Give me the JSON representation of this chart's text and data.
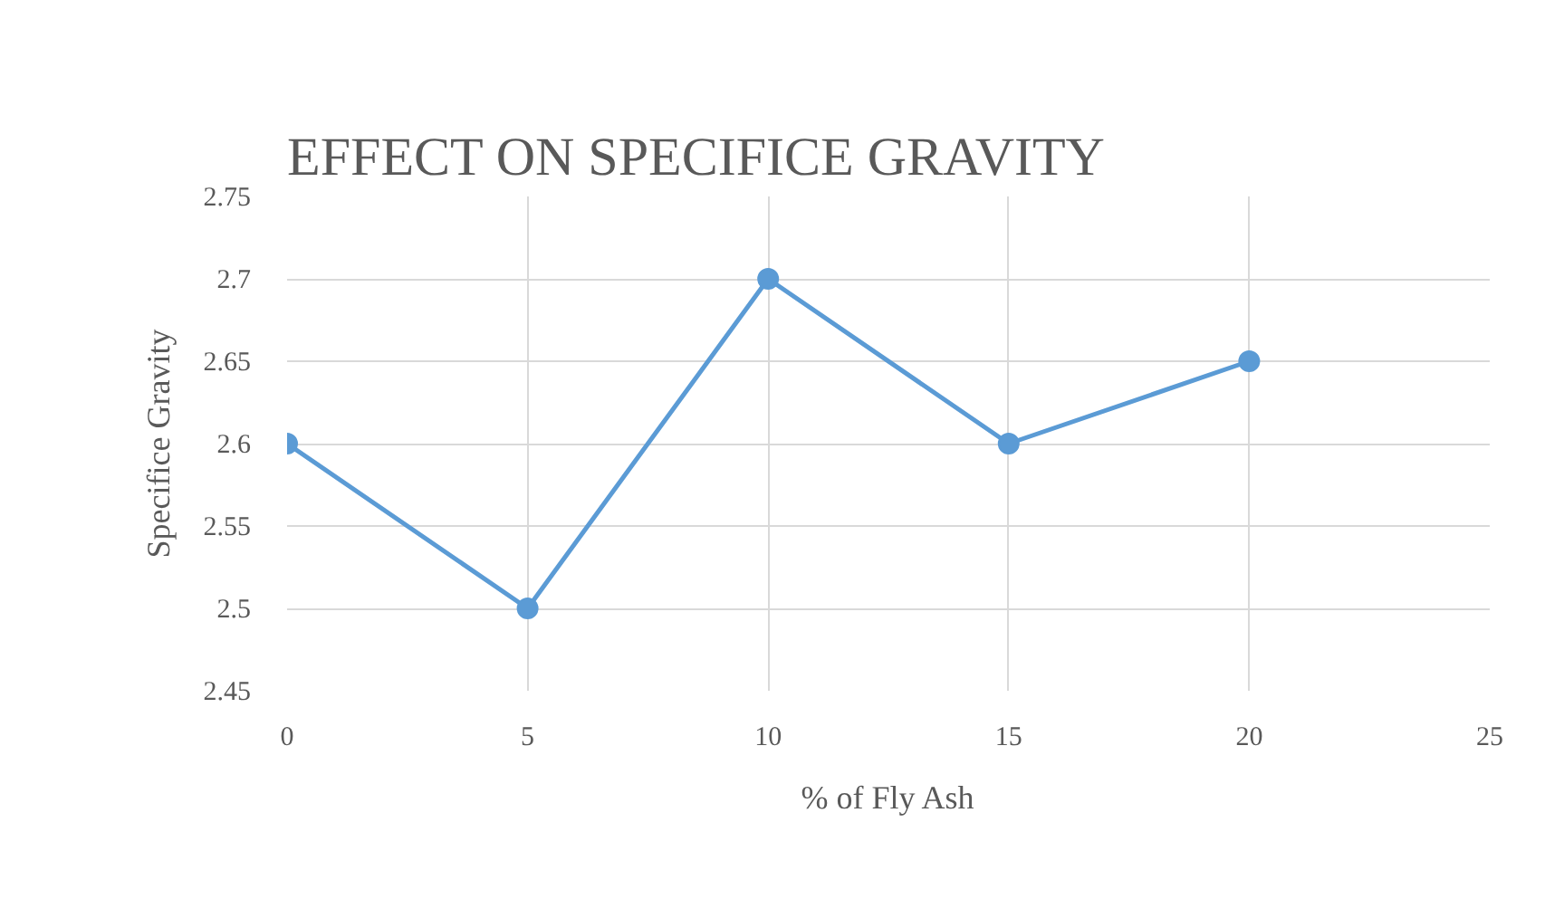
{
  "chart_data": {
    "type": "line",
    "title": "EFFECT ON SPECIFICE GRAVITY",
    "xlabel": "% of Fly Ash",
    "ylabel": "Specifice Gravity",
    "x": [
      0,
      5,
      10,
      15,
      20
    ],
    "series": [
      {
        "color": "#5b9bd5",
        "values": [
          2.6,
          2.5,
          2.7,
          2.6,
          2.65
        ]
      }
    ],
    "xlim": [
      0,
      25
    ],
    "xticks": [
      0,
      5,
      10,
      15,
      20,
      25
    ],
    "ylim": [
      2.45,
      2.75
    ],
    "yticks": [
      {
        "value": 2.45,
        "label": "2.45"
      },
      {
        "value": 2.5,
        "label": "2.5"
      },
      {
        "value": 2.55,
        "label": "2.55"
      },
      {
        "value": 2.6,
        "label": "2.6"
      },
      {
        "value": 2.65,
        "label": "2.65"
      },
      {
        "value": 2.7,
        "label": "2.7"
      },
      {
        "value": 2.75,
        "label": "2.75"
      }
    ],
    "grid": true,
    "marker": "circle",
    "line_style": "solid"
  }
}
